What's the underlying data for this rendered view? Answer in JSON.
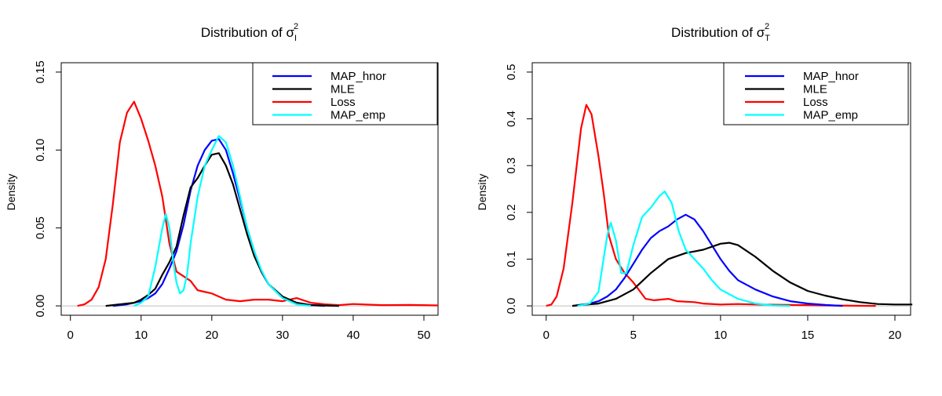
{
  "chart_data": [
    {
      "type": "line",
      "title": "Distribution of σ",
      "title_sup": "2",
      "title_sub": "I",
      "xlabel": "",
      "ylabel": "Density",
      "xlim": [
        -1.3,
        52.0
      ],
      "ylim": [
        -0.006,
        0.156
      ],
      "xticks": [
        0,
        10,
        20,
        30,
        40,
        50
      ],
      "yticks": [
        0.0,
        0.05,
        0.1,
        0.15
      ],
      "ytick_labels": [
        "0.00",
        "0.05",
        "0.10",
        "0.15"
      ],
      "baseline": 0,
      "legend": {
        "placement": "top-right",
        "entries": [
          {
            "name": "MAP_hnor",
            "color": "#0000ff"
          },
          {
            "name": "MLE",
            "color": "#000000"
          },
          {
            "name": "Loss",
            "color": "#ff0000"
          },
          {
            "name": "MAP_emp",
            "color": "#00ffff"
          }
        ]
      },
      "series": [
        {
          "name": "Loss",
          "color": "#ff0000",
          "points": [
            [
              1,
              0
            ],
            [
              2,
              0.001
            ],
            [
              3,
              0.004
            ],
            [
              4,
              0.012
            ],
            [
              5,
              0.03
            ],
            [
              6,
              0.065
            ],
            [
              7,
              0.105
            ],
            [
              8,
              0.124
            ],
            [
              9,
              0.131
            ],
            [
              10,
              0.12
            ],
            [
              11,
              0.106
            ],
            [
              12,
              0.09
            ],
            [
              13,
              0.07
            ],
            [
              14,
              0.04
            ],
            [
              15,
              0.022
            ],
            [
              16,
              0.019
            ],
            [
              17,
              0.016
            ],
            [
              18,
              0.01
            ],
            [
              20,
              0.008
            ],
            [
              22,
              0.004
            ],
            [
              24,
              0.003
            ],
            [
              26,
              0.004
            ],
            [
              28,
              0.004
            ],
            [
              30,
              0.003
            ],
            [
              32,
              0.005
            ],
            [
              34,
              0.002
            ],
            [
              36,
              0.001
            ],
            [
              38,
              0.0005
            ],
            [
              40,
              0.0012
            ],
            [
              44,
              0.0005
            ],
            [
              48,
              0.0006
            ],
            [
              52,
              0.0003
            ]
          ]
        },
        {
          "name": "MAP_hnor",
          "color": "#0000ff",
          "points": [
            [
              6,
              0
            ],
            [
              8,
              0.001
            ],
            [
              10,
              0.003
            ],
            [
              11,
              0.005
            ],
            [
              12,
              0.008
            ],
            [
              13,
              0.014
            ],
            [
              14,
              0.024
            ],
            [
              15,
              0.035
            ],
            [
              16,
              0.052
            ],
            [
              17,
              0.074
            ],
            [
              18,
              0.09
            ],
            [
              19,
              0.1
            ],
            [
              20,
              0.106
            ],
            [
              21,
              0.107
            ],
            [
              22,
              0.1
            ],
            [
              23,
              0.085
            ],
            [
              24,
              0.068
            ],
            [
              25,
              0.05
            ],
            [
              26,
              0.035
            ],
            [
              27,
              0.022
            ],
            [
              28,
              0.014
            ],
            [
              30,
              0.005
            ],
            [
              32,
              0.002
            ],
            [
              34,
              0.0005
            ],
            [
              36,
              0
            ]
          ]
        },
        {
          "name": "MLE",
          "color": "#000000",
          "points": [
            [
              5,
              0
            ],
            [
              7,
              0.001
            ],
            [
              9,
              0.002
            ],
            [
              10,
              0.004
            ],
            [
              11,
              0.007
            ],
            [
              12,
              0.011
            ],
            [
              13,
              0.02
            ],
            [
              14,
              0.028
            ],
            [
              15,
              0.038
            ],
            [
              16,
              0.058
            ],
            [
              17,
              0.076
            ],
            [
              18,
              0.082
            ],
            [
              19,
              0.09
            ],
            [
              20,
              0.097
            ],
            [
              21,
              0.098
            ],
            [
              22,
              0.09
            ],
            [
              23,
              0.078
            ],
            [
              24,
              0.062
            ],
            [
              25,
              0.046
            ],
            [
              26,
              0.032
            ],
            [
              27,
              0.022
            ],
            [
              28,
              0.014
            ],
            [
              30,
              0.006
            ],
            [
              32,
              0.002
            ],
            [
              34,
              0.0005
            ],
            [
              38,
              0
            ]
          ]
        },
        {
          "name": "MAP_emp",
          "color": "#00ffff",
          "points": [
            [
              9,
              0
            ],
            [
              10,
              0.002
            ],
            [
              11,
              0.006
            ],
            [
              12,
              0.025
            ],
            [
              13,
              0.05
            ],
            [
              13.5,
              0.059
            ],
            [
              14,
              0.05
            ],
            [
              14.5,
              0.03
            ],
            [
              15,
              0.015
            ],
            [
              15.5,
              0.008
            ],
            [
              16,
              0.01
            ],
            [
              16.5,
              0.02
            ],
            [
              17,
              0.04
            ],
            [
              18,
              0.07
            ],
            [
              19,
              0.09
            ],
            [
              20,
              0.1
            ],
            [
              21,
              0.109
            ],
            [
              22,
              0.105
            ],
            [
              23,
              0.09
            ],
            [
              24,
              0.07
            ],
            [
              25,
              0.05
            ],
            [
              26,
              0.035
            ],
            [
              27,
              0.023
            ],
            [
              28,
              0.014
            ],
            [
              30,
              0.005
            ],
            [
              32,
              0.001
            ],
            [
              34,
              0
            ]
          ]
        }
      ]
    },
    {
      "type": "line",
      "title": "Distribution of σ",
      "title_sup": "2",
      "title_sub": "T",
      "xlabel": "",
      "ylabel": "Density",
      "xlim": [
        -0.8,
        20.9
      ],
      "ylim": [
        -0.02,
        0.52
      ],
      "xticks": [
        0,
        5,
        10,
        15,
        20
      ],
      "yticks": [
        0.0,
        0.1,
        0.2,
        0.3,
        0.4,
        0.5
      ],
      "ytick_labels": [
        "0.0",
        "0.1",
        "0.2",
        "0.3",
        "0.4",
        "0.5"
      ],
      "baseline": 0,
      "legend": {
        "placement": "top-right",
        "entries": [
          {
            "name": "MAP_hnor",
            "color": "#0000ff"
          },
          {
            "name": "MLE",
            "color": "#000000"
          },
          {
            "name": "Loss",
            "color": "#ff0000"
          },
          {
            "name": "MAP_emp",
            "color": "#00ffff"
          }
        ]
      },
      "series": [
        {
          "name": "Loss",
          "color": "#ff0000",
          "points": [
            [
              0,
              0
            ],
            [
              0.3,
              0.003
            ],
            [
              0.6,
              0.02
            ],
            [
              1.0,
              0.08
            ],
            [
              1.5,
              0.22
            ],
            [
              2.0,
              0.38
            ],
            [
              2.3,
              0.43
            ],
            [
              2.6,
              0.41
            ],
            [
              3.0,
              0.32
            ],
            [
              3.3,
              0.24
            ],
            [
              3.6,
              0.15
            ],
            [
              4.0,
              0.1
            ],
            [
              4.5,
              0.07
            ],
            [
              5.0,
              0.05
            ],
            [
              5.3,
              0.035
            ],
            [
              5.7,
              0.015
            ],
            [
              6.2,
              0.012
            ],
            [
              7.0,
              0.015
            ],
            [
              7.5,
              0.01
            ],
            [
              8.5,
              0.008
            ],
            [
              9.0,
              0.005
            ],
            [
              10,
              0.003
            ],
            [
              11,
              0.004
            ],
            [
              12,
              0.003
            ],
            [
              14,
              0.002
            ],
            [
              16,
              0.001
            ],
            [
              18.9,
              0
            ]
          ]
        },
        {
          "name": "MAP_hnor",
          "color": "#0000ff",
          "points": [
            [
              1.5,
              0
            ],
            [
              2.5,
              0.005
            ],
            [
              3,
              0.01
            ],
            [
              3.5,
              0.02
            ],
            [
              4,
              0.035
            ],
            [
              4.5,
              0.06
            ],
            [
              5,
              0.09
            ],
            [
              5.5,
              0.12
            ],
            [
              6,
              0.145
            ],
            [
              6.5,
              0.16
            ],
            [
              7,
              0.17
            ],
            [
              7.5,
              0.185
            ],
            [
              8,
              0.195
            ],
            [
              8.5,
              0.185
            ],
            [
              9,
              0.16
            ],
            [
              9.5,
              0.13
            ],
            [
              10,
              0.1
            ],
            [
              10.5,
              0.075
            ],
            [
              11,
              0.055
            ],
            [
              12,
              0.035
            ],
            [
              13,
              0.02
            ],
            [
              14,
              0.01
            ],
            [
              15,
              0.005
            ],
            [
              16,
              0.002
            ],
            [
              17,
              0
            ]
          ]
        },
        {
          "name": "MLE",
          "color": "#000000",
          "points": [
            [
              1.5,
              0
            ],
            [
              2,
              0.002
            ],
            [
              3,
              0.005
            ],
            [
              4,
              0.015
            ],
            [
              5,
              0.035
            ],
            [
              6,
              0.07
            ],
            [
              7,
              0.1
            ],
            [
              8,
              0.113
            ],
            [
              9,
              0.12
            ],
            [
              10,
              0.133
            ],
            [
              10.5,
              0.135
            ],
            [
              11,
              0.13
            ],
            [
              12,
              0.105
            ],
            [
              13,
              0.075
            ],
            [
              14,
              0.05
            ],
            [
              15,
              0.032
            ],
            [
              16,
              0.022
            ],
            [
              17,
              0.014
            ],
            [
              18,
              0.008
            ],
            [
              19,
              0.004
            ],
            [
              20,
              0.003
            ],
            [
              21,
              0.003
            ]
          ]
        },
        {
          "name": "MAP_emp",
          "color": "#00ffff",
          "points": [
            [
              1.8,
              0
            ],
            [
              2.5,
              0.005
            ],
            [
              3,
              0.03
            ],
            [
              3.5,
              0.15
            ],
            [
              3.7,
              0.178
            ],
            [
              4,
              0.14
            ],
            [
              4.3,
              0.07
            ],
            [
              4.6,
              0.07
            ],
            [
              5,
              0.13
            ],
            [
              5.5,
              0.19
            ],
            [
              6,
              0.21
            ],
            [
              6.5,
              0.235
            ],
            [
              6.8,
              0.245
            ],
            [
              7.2,
              0.22
            ],
            [
              7.6,
              0.16
            ],
            [
              8,
              0.12
            ],
            [
              8.5,
              0.1
            ],
            [
              9,
              0.08
            ],
            [
              9.5,
              0.055
            ],
            [
              10,
              0.035
            ],
            [
              11,
              0.015
            ],
            [
              12,
              0.005
            ],
            [
              13,
              0.001
            ],
            [
              14,
              0
            ]
          ]
        }
      ]
    }
  ]
}
